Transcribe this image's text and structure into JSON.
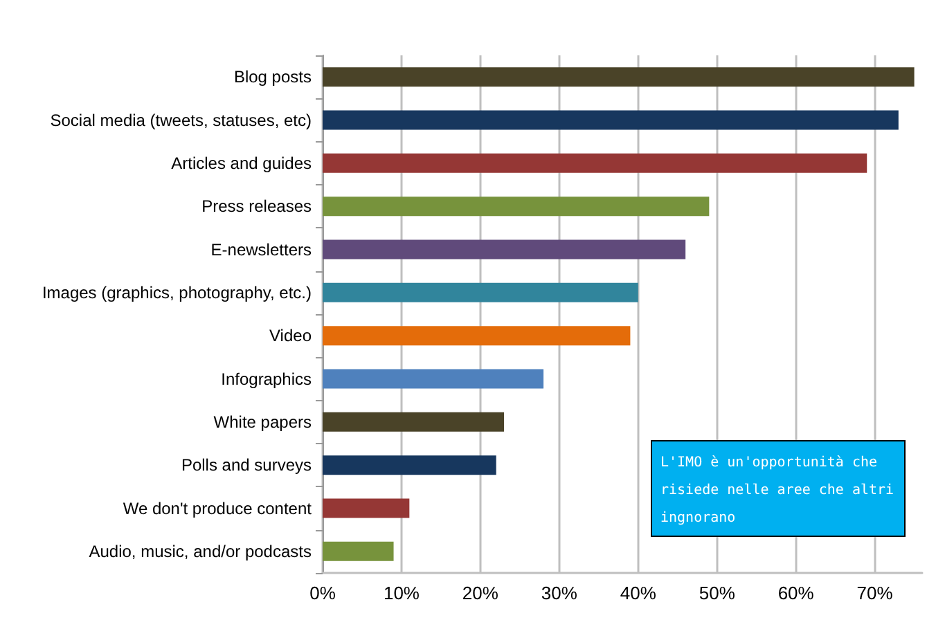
{
  "chart_data": {
    "type": "bar",
    "orientation": "horizontal",
    "categories": [
      "Blog posts",
      "Social media (tweets, statuses, etc)",
      "Articles and guides",
      "Press releases",
      "E-newsletters",
      "Images (graphics, photography, etc.)",
      "Video",
      "Infographics",
      "White papers",
      "Polls and surveys",
      "We don't produce content",
      "Audio, music, and/or podcasts"
    ],
    "values": [
      75,
      73,
      69,
      49,
      46,
      40,
      39,
      28,
      23,
      22,
      11,
      9
    ],
    "colors": [
      "#4a4328",
      "#17375e",
      "#953735",
      "#77933c",
      "#604a7b",
      "#31859c",
      "#e46c0a",
      "#4f81bd",
      "#4a4328",
      "#17375e",
      "#953735",
      "#77933c"
    ],
    "xlim": [
      0,
      76
    ],
    "xticks": [
      {
        "value": 0,
        "label": "0%"
      },
      {
        "value": 10,
        "label": "10%"
      },
      {
        "value": 20,
        "label": "20%"
      },
      {
        "value": 30,
        "label": "30%"
      },
      {
        "value": 40,
        "label": "40%"
      },
      {
        "value": 50,
        "label": "50%"
      },
      {
        "value": 60,
        "label": "60%"
      },
      {
        "value": 70,
        "label": "70%"
      }
    ],
    "grid": "x",
    "annotations": [
      "L'IMO è un'opportunità che risiede nelle aree che altri ingnorano"
    ]
  }
}
